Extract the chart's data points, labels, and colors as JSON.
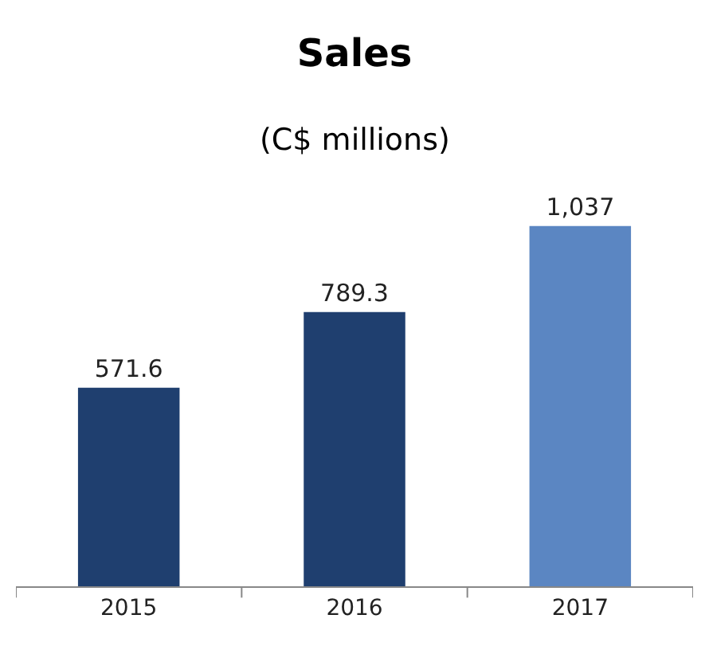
{
  "chart_data": {
    "type": "bar",
    "title": "Sales",
    "subtitle": "(C$ millions)",
    "categories": [
      "2015",
      "2016",
      "2017"
    ],
    "values": [
      571.6,
      789.3,
      1037
    ],
    "colors": [
      "#1f3f6f",
      "#1f3f6f",
      "#5b86c2"
    ],
    "value_labels": [
      "571.6",
      "789.3",
      "1,037"
    ]
  }
}
